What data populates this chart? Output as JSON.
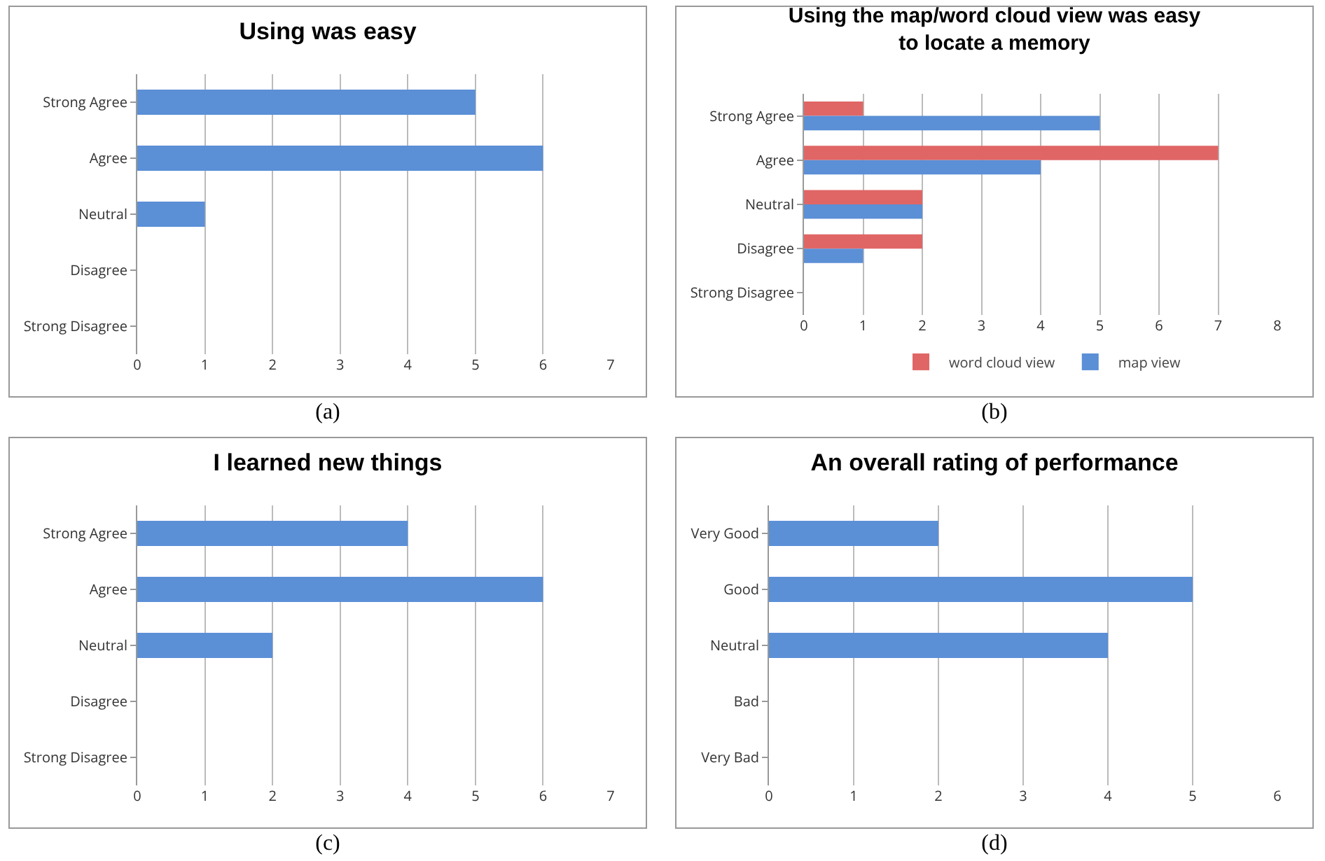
{
  "chart_data": [
    {
      "type": "bar",
      "orientation": "horizontal",
      "title": "Using was easy",
      "categories": [
        "Strong Agree",
        "Agree",
        "Neutral",
        "Disagree",
        "Strong Disagree"
      ],
      "values": [
        5,
        6,
        1,
        0,
        0
      ],
      "color": "#5b8fd6",
      "xlim": [
        0,
        7
      ],
      "xticks": [
        0,
        1,
        2,
        3,
        4,
        5,
        6,
        7
      ],
      "grid": "x",
      "legend": false,
      "annotations": [
        "(a)"
      ]
    },
    {
      "type": "bar",
      "orientation": "horizontal",
      "title": "Using the map/word cloud view was easy to locate a memory",
      "categories": [
        "Strong Agree",
        "Agree",
        "Neutral",
        "Disagree",
        "Strong Disagree"
      ],
      "series": [
        {
          "name": "word cloud view",
          "color": "#e06666",
          "values": [
            1,
            7,
            2,
            2,
            0
          ]
        },
        {
          "name": "map view",
          "color": "#5b8fd6",
          "values": [
            5,
            4,
            2,
            1,
            0
          ]
        }
      ],
      "xlim": [
        0,
        8
      ],
      "xticks": [
        0,
        1,
        2,
        3,
        4,
        5,
        6,
        7,
        8
      ],
      "grid": "x",
      "legend": "bottom",
      "annotations": [
        "(b)"
      ]
    },
    {
      "type": "bar",
      "orientation": "horizontal",
      "title": "I learned new things",
      "categories": [
        "Strong Agree",
        "Agree",
        "Neutral",
        "Disagree",
        "Strong Disagree"
      ],
      "values": [
        4,
        6,
        2,
        0,
        0
      ],
      "color": "#5b8fd6",
      "xlim": [
        0,
        7
      ],
      "xticks": [
        0,
        1,
        2,
        3,
        4,
        5,
        6,
        7
      ],
      "grid": "x",
      "legend": false,
      "annotations": [
        "(c)"
      ]
    },
    {
      "type": "bar",
      "orientation": "horizontal",
      "title": "An overall rating of performance",
      "categories": [
        "Very Good",
        "Good",
        "Neutral",
        "Bad",
        "Very Bad"
      ],
      "values": [
        2,
        5,
        4,
        0,
        0
      ],
      "color": "#5b8fd6",
      "xlim": [
        0,
        6
      ],
      "xticks": [
        0,
        1,
        2,
        3,
        4,
        5,
        6
      ],
      "grid": "x",
      "legend": false,
      "annotations": [
        "(d)"
      ]
    }
  ]
}
